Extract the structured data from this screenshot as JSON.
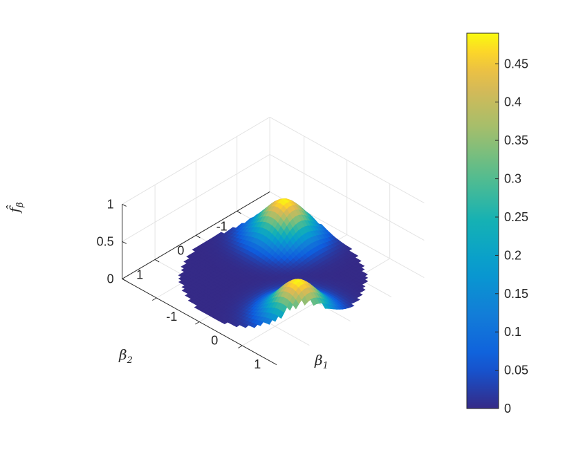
{
  "chart_data": {
    "type": "surface",
    "title": "",
    "xlabel": "β",
    "xlabel_sub": "1",
    "ylabel": "β",
    "ylabel_sub": "2",
    "zlabel": "f̂",
    "zlabel_sub": "β",
    "xlim": [
      -1.8,
      1.8
    ],
    "ylim": [
      -1.8,
      1.8
    ],
    "zlim": [
      0,
      1
    ],
    "x_ticks": [
      -1,
      0,
      1
    ],
    "y_ticks": [
      -1,
      0,
      1
    ],
    "z_ticks": [
      0,
      0.5,
      1
    ],
    "x_tick_labels": [
      "-1",
      "0",
      "1"
    ],
    "y_tick_labels": [
      "-1",
      "0",
      "1"
    ],
    "z_tick_labels": [
      "0",
      "0.5",
      "1"
    ],
    "grid": true,
    "view": {
      "azimuth": -37.5,
      "elevation": 30
    },
    "domain": {
      "shape": "disk",
      "center": [
        0,
        0
      ],
      "radius": 1.55
    },
    "peaks": [
      {
        "center": [
          1.1,
          0.55
        ],
        "height": 0.49
      },
      {
        "center": [
          -0.7,
          -1.0
        ],
        "height": 0.49
      }
    ],
    "colormap": "parula",
    "colorbar": {
      "ticks": [
        0,
        0.05,
        0.1,
        0.15,
        0.2,
        0.25,
        0.3,
        0.35,
        0.4,
        0.45
      ],
      "tick_labels": [
        "0",
        "0.05",
        "0.1",
        "0.15",
        "0.2",
        "0.25",
        "0.3",
        "0.35",
        "0.4",
        "0.45"
      ],
      "clim": [
        0,
        0.49
      ],
      "placement": "right"
    }
  }
}
